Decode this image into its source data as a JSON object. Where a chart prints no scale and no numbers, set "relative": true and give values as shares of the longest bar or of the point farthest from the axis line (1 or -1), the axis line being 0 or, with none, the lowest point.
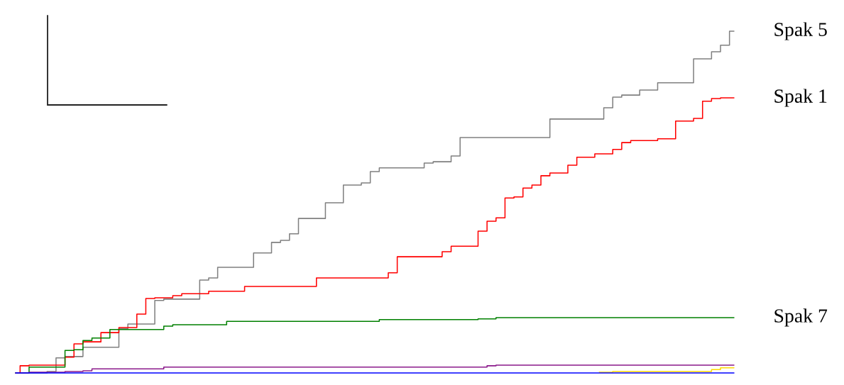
{
  "chart_data": {
    "type": "step",
    "relative": true,
    "line_style": "solid",
    "categories": [
      null,
      null,
      null,
      null,
      null,
      null,
      null,
      null,
      null,
      null,
      null,
      null,
      null,
      null,
      null,
      null,
      null,
      null,
      null,
      null,
      null,
      null,
      null,
      null,
      null,
      null,
      null,
      null,
      null,
      null,
      null,
      null,
      null,
      null,
      null,
      null,
      null,
      null,
      null,
      null,
      null,
      null,
      null,
      null,
      null,
      null,
      null,
      null,
      null,
      null,
      null,
      null,
      null,
      null,
      null,
      null,
      null,
      null,
      null,
      null,
      null,
      null,
      null,
      null,
      null,
      null,
      null,
      null,
      null,
      null,
      null,
      null,
      null,
      null,
      null,
      null,
      null,
      null,
      null,
      null,
      null
    ],
    "series": [
      {
        "name": "Spak 5",
        "color": "#808080",
        "values": [
          0,
          0,
          0,
          0,
          0.004,
          0.044,
          0.048,
          0.048,
          0.075,
          0.075,
          0.075,
          0.075,
          0.129,
          0.143,
          0.143,
          0.143,
          0.212,
          0.216,
          0.216,
          0.216,
          0.216,
          0.272,
          0.278,
          0.309,
          0.309,
          0.309,
          0.309,
          0.351,
          0.351,
          0.382,
          0.388,
          0.407,
          0.452,
          0.452,
          0.452,
          0.498,
          0.498,
          0.55,
          0.55,
          0.556,
          0.589,
          0.6,
          0.6,
          0.6,
          0.6,
          0.6,
          0.614,
          0.618,
          0.618,
          0.635,
          0.689,
          0.689,
          0.689,
          0.689,
          0.689,
          0.689,
          0.689,
          0.689,
          0.689,
          0.689,
          0.743,
          0.743,
          0.743,
          0.743,
          0.743,
          0.743,
          0.776,
          0.807,
          0.813,
          0.813,
          0.828,
          0.828,
          0.849,
          0.849,
          0.849,
          0.849,
          0.919,
          0.919,
          0.94,
          0.959,
          1
        ]
      },
      {
        "name": "Spak 1",
        "color": "#ff0000",
        "values": [
          0,
          0.021,
          0.023,
          0.023,
          0.023,
          0.023,
          0.046,
          0.085,
          0.091,
          0.091,
          0.118,
          0.118,
          0.133,
          0.133,
          0.172,
          0.218,
          0.22,
          0.22,
          0.226,
          0.232,
          0.232,
          0.232,
          0.239,
          0.239,
          0.239,
          0.239,
          0.253,
          0.253,
          0.253,
          0.253,
          0.253,
          0.253,
          0.253,
          0.253,
          0.278,
          0.278,
          0.278,
          0.278,
          0.278,
          0.278,
          0.278,
          0.278,
          0.293,
          0.34,
          0.34,
          0.34,
          0.34,
          0.34,
          0.355,
          0.371,
          0.371,
          0.371,
          0.415,
          0.444,
          0.454,
          0.512,
          0.515,
          0.541,
          0.55,
          0.577,
          0.585,
          0.585,
          0.608,
          0.631,
          0.631,
          0.641,
          0.641,
          0.654,
          0.674,
          0.68,
          0.68,
          0.68,
          0.685,
          0.685,
          0.737,
          0.737,
          0.745,
          0.795,
          0.803,
          0.805,
          0.805
        ]
      },
      {
        "name": "Spak 7",
        "color": "#008000",
        "values": [
          0,
          0,
          0.017,
          0.017,
          0.017,
          0.017,
          0.066,
          0.068,
          0.095,
          0.102,
          0.102,
          0.127,
          0.127,
          0.127,
          0.127,
          0.127,
          0.127,
          0.137,
          0.141,
          0.141,
          0.141,
          0.141,
          0.141,
          0.141,
          0.151,
          0.151,
          0.151,
          0.151,
          0.151,
          0.151,
          0.151,
          0.151,
          0.151,
          0.151,
          0.151,
          0.151,
          0.151,
          0.151,
          0.151,
          0.151,
          0.151,
          0.156,
          0.156,
          0.156,
          0.156,
          0.156,
          0.156,
          0.156,
          0.156,
          0.156,
          0.156,
          0.156,
          0.158,
          0.158,
          0.162,
          0.162,
          0.162,
          0.162,
          0.162,
          0.162,
          0.162,
          0.162,
          0.162,
          0.162,
          0.162,
          0.162,
          0.162,
          0.162,
          0.162,
          0.162,
          0.162,
          0.162,
          0.162,
          0.162,
          0.162,
          0.162,
          0.162,
          0.162,
          0.162,
          0.162,
          0.162
        ]
      },
      {
        "color": "#8b1a8b",
        "values": [
          0,
          0,
          0.002,
          0.002,
          0.002,
          0.002,
          0.004,
          0.004,
          0.006,
          0.012,
          0.012,
          0.012,
          0.012,
          0.012,
          0.012,
          0.012,
          0.012,
          0.017,
          0.017,
          0.017,
          0.017,
          0.017,
          0.017,
          0.017,
          0.017,
          0.017,
          0.017,
          0.017,
          0.017,
          0.017,
          0.017,
          0.017,
          0.017,
          0.017,
          0.017,
          0.017,
          0.017,
          0.017,
          0.017,
          0.017,
          0.017,
          0.017,
          0.017,
          0.017,
          0.017,
          0.017,
          0.017,
          0.017,
          0.017,
          0.017,
          0.017,
          0.017,
          0.017,
          0.021,
          0.023,
          0.023,
          0.023,
          0.023,
          0.023,
          0.023,
          0.023,
          0.023,
          0.023,
          0.023,
          0.023,
          0.023,
          0.023,
          0.023,
          0.023,
          0.023,
          0.023,
          0.023,
          0.023,
          0.023,
          0.023,
          0.023,
          0.023,
          0.023,
          0.023,
          0.023,
          0.023
        ]
      },
      {
        "color": "#ffd700",
        "values": [
          null,
          null,
          null,
          null,
          null,
          null,
          null,
          null,
          null,
          null,
          null,
          null,
          null,
          null,
          null,
          null,
          null,
          null,
          null,
          null,
          null,
          null,
          null,
          null,
          null,
          null,
          null,
          null,
          null,
          null,
          null,
          null,
          null,
          null,
          null,
          null,
          null,
          null,
          null,
          null,
          null,
          null,
          null,
          null,
          null,
          null,
          null,
          null,
          null,
          null,
          null,
          null,
          null,
          null,
          null,
          null,
          null,
          null,
          null,
          null,
          null,
          null,
          null,
          null,
          null,
          0.002,
          0.002,
          0.004,
          0.004,
          0.004,
          0.004,
          0.004,
          0.004,
          0.004,
          0.004,
          0.004,
          0.004,
          0.004,
          0.01,
          0.015,
          0.015
        ]
      },
      {
        "color": "#0000ff",
        "values": [
          0,
          0,
          0,
          0,
          0,
          0,
          0,
          0,
          0,
          0,
          0,
          0,
          0,
          0,
          0,
          0,
          0,
          0,
          0,
          0,
          0,
          0,
          0,
          0,
          0,
          0,
          0,
          0,
          0,
          0,
          0,
          0,
          0,
          0,
          0,
          0,
          0,
          0,
          0,
          0,
          0,
          0,
          0,
          0,
          0,
          0,
          0,
          0,
          0,
          0,
          0,
          0,
          0,
          0,
          0,
          0,
          0,
          0,
          0,
          0,
          0,
          0,
          0,
          0,
          0,
          0,
          0,
          0,
          0,
          0,
          0,
          0,
          0,
          0,
          0,
          0,
          0,
          0,
          0,
          0,
          0
        ]
      }
    ]
  }
}
